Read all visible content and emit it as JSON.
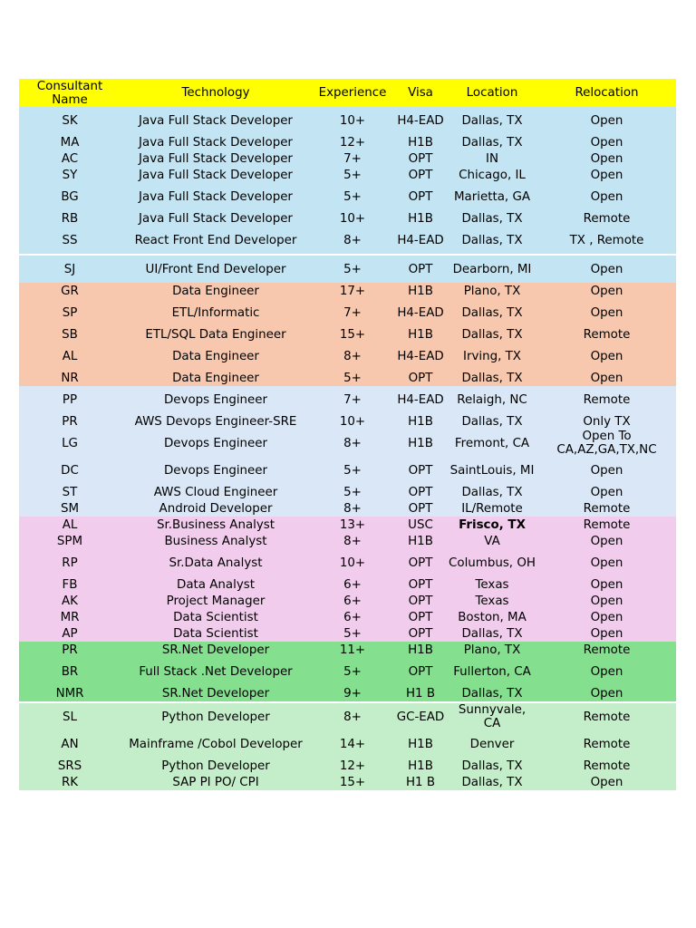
{
  "headers": {
    "name": "Consultant Name",
    "technology": "Technology",
    "experience": "Experience",
    "visa": "Visa",
    "location": "Location",
    "relocation": "Relocation"
  },
  "colors": {
    "header": "#ffff00",
    "java_group": "#c3e4f3",
    "data_group": "#f7c8ad",
    "devops_group": "#d9e7f6",
    "analyst_group": "#f1ccec",
    "dotnet_group": "#84e08f",
    "python_group": "#c4eec9"
  },
  "rows": [
    {
      "name": "SK",
      "tech": "Java Full Stack Developer",
      "exp": "10+",
      "visa": "H4-EAD",
      "loc": "Dallas, TX",
      "rel": "Open"
    },
    {
      "name": "MA",
      "tech": "Java Full Stack Developer",
      "exp": "12+",
      "visa": "H1B",
      "loc": "Dallas, TX",
      "rel": "Open"
    },
    {
      "name": "AC",
      "tech": "Java Full Stack Developer",
      "exp": "7+",
      "visa": "OPT",
      "loc": "IN",
      "rel": "Open"
    },
    {
      "name": "SY",
      "tech": "Java Full Stack Developer",
      "exp": "5+",
      "visa": "OPT",
      "loc": "Chicago, IL",
      "rel": "Open"
    },
    {
      "name": "BG",
      "tech": "Java Full Stack Developer",
      "exp": "5+",
      "visa": "OPT",
      "loc": "Marietta, GA",
      "rel": "Open"
    },
    {
      "name": "RB",
      "tech": "Java Full Stack Developer",
      "exp": "10+",
      "visa": "H1B",
      "loc": "Dallas, TX",
      "rel": "Remote"
    },
    {
      "name": "SS",
      "tech": "React Front End Developer",
      "exp": "8+",
      "visa": "H4-EAD",
      "loc": "Dallas, TX",
      "rel": "TX , Remote"
    },
    {
      "name": "SJ",
      "tech": "UI/Front End Developer",
      "exp": "5+",
      "visa": "OPT",
      "loc": "Dearborn, MI",
      "rel": "Open"
    },
    {
      "name": "GR",
      "tech": "Data Engineer",
      "exp": "17+",
      "visa": "H1B",
      "loc": "Plano, TX",
      "rel": "Open"
    },
    {
      "name": "SP",
      "tech": "ETL/Informatic",
      "exp": "7+",
      "visa": "H4-EAD",
      "loc": "Dallas, TX",
      "rel": "Open"
    },
    {
      "name": "SB",
      "tech": "ETL/SQL Data Engineer",
      "exp": "15+",
      "visa": "H1B",
      "loc": "Dallas, TX",
      "rel": "Remote"
    },
    {
      "name": "AL",
      "tech": "Data Engineer",
      "exp": "8+",
      "visa": "H4-EAD",
      "loc": "Irving, TX",
      "rel": "Open"
    },
    {
      "name": "NR",
      "tech": "Data Engineer",
      "exp": "5+",
      "visa": "OPT",
      "loc": "Dallas, TX",
      "rel": "Open"
    },
    {
      "name": "PP",
      "tech": "Devops Engineer",
      "exp": "7+",
      "visa": "H4-EAD",
      "loc": "Relaigh, NC",
      "rel": "Remote"
    },
    {
      "name": "PR",
      "tech": "AWS Devops Engineer-SRE",
      "exp": "10+",
      "visa": "H1B",
      "loc": "Dallas, TX",
      "rel": "Only TX"
    },
    {
      "name": "LG",
      "tech": "Devops Engineer",
      "exp": "8+",
      "visa": "H1B",
      "loc": "Fremont, CA",
      "rel": "Open To CA,AZ,GA,TX,NC"
    },
    {
      "name": "DC",
      "tech": "Devops Engineer",
      "exp": "5+",
      "visa": "OPT",
      "loc": "SaintLouis, MI",
      "rel": "Open"
    },
    {
      "name": "ST",
      "tech": "AWS Cloud Engineer",
      "exp": "5+",
      "visa": "OPT",
      "loc": "Dallas, TX",
      "rel": "Open"
    },
    {
      "name": "SM",
      "tech": "Android Developer",
      "exp": "8+",
      "visa": "OPT",
      "loc": "IL/Remote",
      "rel": "Remote"
    },
    {
      "name": "AL",
      "tech": "Sr.Business Analyst",
      "exp": "13+",
      "visa": "USC",
      "loc": "Frisco, TX",
      "rel": "Remote"
    },
    {
      "name": "SPM",
      "tech": "Business Analyst",
      "exp": "8+",
      "visa": "H1B",
      "loc": "VA",
      "rel": "Open"
    },
    {
      "name": "RP",
      "tech": "Sr.Data Analyst",
      "exp": "10+",
      "visa": "OPT",
      "loc": "Columbus, OH",
      "rel": "Open"
    },
    {
      "name": "FB",
      "tech": "Data Analyst",
      "exp": "6+",
      "visa": "OPT",
      "loc": "Texas",
      "rel": "Open"
    },
    {
      "name": "AK",
      "tech": "Project Manager",
      "exp": "6+",
      "visa": "OPT",
      "loc": "Texas",
      "rel": "Open"
    },
    {
      "name": "MR",
      "tech": "Data Scientist",
      "exp": "6+",
      "visa": "OPT",
      "loc": "Boston, MA",
      "rel": "Open"
    },
    {
      "name": "AP",
      "tech": "Data Scientist",
      "exp": "5+",
      "visa": "OPT",
      "loc": "Dallas, TX",
      "rel": "Open"
    },
    {
      "name": "PR",
      "tech": "SR.Net Developer",
      "exp": "11+",
      "visa": "H1B",
      "loc": "Plano, TX",
      "rel": "Remote"
    },
    {
      "name": "BR",
      "tech": "Full Stack .Net Developer",
      "exp": "5+",
      "visa": "OPT",
      "loc": "Fullerton, CA",
      "rel": "Open"
    },
    {
      "name": "NMR",
      "tech": "SR.Net Developer",
      "exp": "9+",
      "visa": "H1 B",
      "loc": "Dallas, TX",
      "rel": "Open"
    },
    {
      "name": "SL",
      "tech": "Python Developer",
      "exp": "8+",
      "visa": "GC-EAD",
      "loc": "Sunnyvale, CA",
      "rel": "Remote"
    },
    {
      "name": "AN",
      "tech": "Mainframe /Cobol Developer",
      "exp": "14+",
      "visa": "H1B",
      "loc": "Denver",
      "rel": "Remote"
    },
    {
      "name": "SRS",
      "tech": "Python Developer",
      "exp": "12+",
      "visa": "H1B",
      "loc": "Dallas, TX",
      "rel": "Remote"
    },
    {
      "name": "RK",
      "tech": "SAP PI PO/ CPI",
      "exp": "15+",
      "visa": "H1 B",
      "loc": "Dallas, TX",
      "rel": "Open"
    }
  ]
}
